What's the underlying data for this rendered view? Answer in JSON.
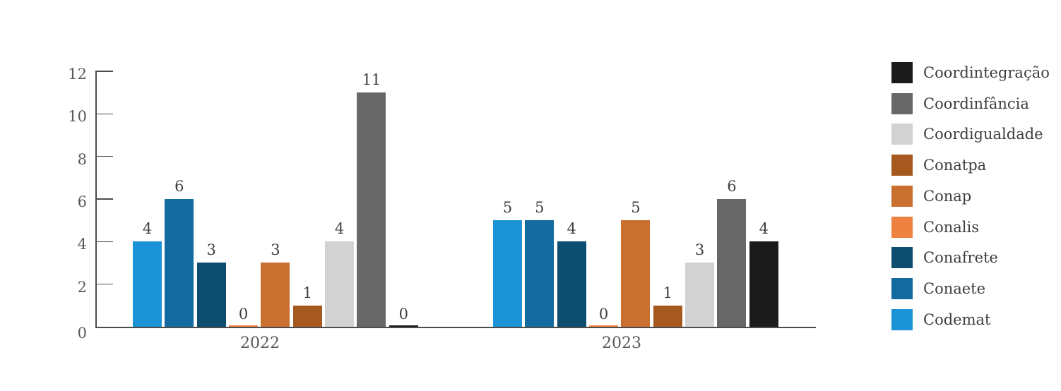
{
  "chart_data": {
    "type": "bar",
    "title": "",
    "xlabel": "",
    "ylabel": "",
    "categories": [
      "2022",
      "2023"
    ],
    "series": [
      {
        "name": "Codemat",
        "color": "#1B93D6",
        "values": [
          4,
          5
        ]
      },
      {
        "name": "Conaete",
        "color": "#136A9F",
        "values": [
          6,
          5
        ]
      },
      {
        "name": "Conafrete",
        "color": "#0D4D70",
        "values": [
          3,
          4
        ]
      },
      {
        "name": "Conalis",
        "color": "#EE8240",
        "values": [
          0,
          0
        ]
      },
      {
        "name": "Conap",
        "color": "#C97031",
        "values": [
          3,
          5
        ]
      },
      {
        "name": "Conatpa",
        "color": "#A5591F",
        "values": [
          1,
          1
        ]
      },
      {
        "name": "Coordigualdade",
        "color": "#D2D2D2",
        "values": [
          4,
          3
        ]
      },
      {
        "name": "Coordinfância",
        "color": "#686868",
        "values": [
          11,
          6
        ]
      },
      {
        "name": "Coordintegração",
        "color": "#1B1B1B",
        "values": [
          0,
          4
        ]
      }
    ],
    "legend": [
      "Coordintegração",
      "Coordinfância",
      "Coordigualdade",
      "Conatpa",
      "Conap",
      "Conalis",
      "Conafrete",
      "Conaete",
      "Codemat"
    ],
    "legend_position": "right",
    "data_labels": true,
    "grid": false,
    "ylim": [
      0,
      12
    ],
    "yticks": [
      0,
      2,
      4,
      6,
      8,
      10,
      12
    ]
  },
  "colors": {
    "background": "#FFFFFF",
    "axis": "#4C4C4C",
    "tick_label": "#595959",
    "value_label": "#3F3F3F",
    "category_label": "#595959",
    "legend_text": "#3D3D3D"
  }
}
